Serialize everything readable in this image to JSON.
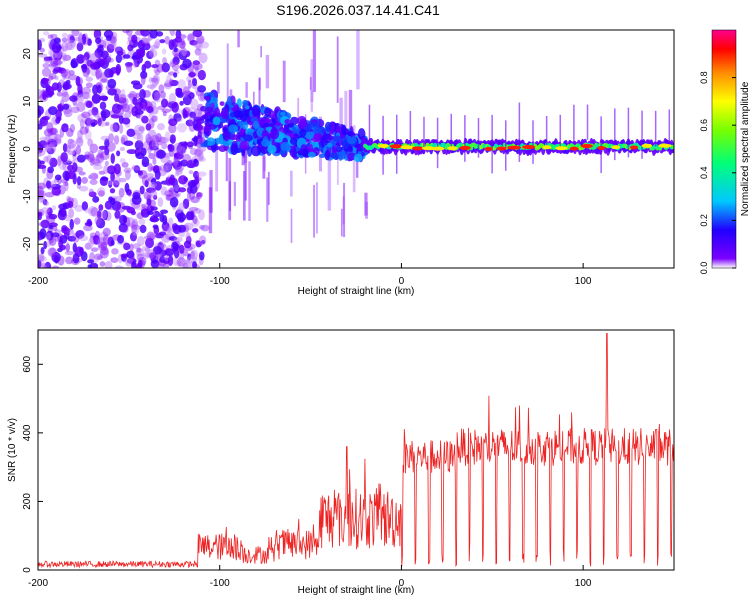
{
  "title": "S196.2026.037.14.41.C41",
  "chart_data": [
    {
      "type": "heatmap",
      "title": "S196.2026.037.14.41.C41",
      "xlabel": "Height of straight line (km)",
      "ylabel": "Frequency (Hz)",
      "xlim": [
        -200,
        150
      ],
      "ylim": [
        -25,
        25
      ],
      "xticks": [
        -200,
        -100,
        0,
        100
      ],
      "yticks": [
        -20,
        -10,
        0,
        10,
        20
      ],
      "colorbar": {
        "label": "Normalized spectral amplitude",
        "range": [
          0,
          1
        ],
        "ticks": [
          0.0,
          0.2,
          0.4,
          0.6,
          0.8
        ],
        "tick_labels": [
          "0.0",
          "0.2",
          "0.4",
          "0.6",
          "0.8"
        ],
        "colors": [
          "#ffffff",
          "#7a00ff",
          "#0000ff",
          "#00c8ff",
          "#00ff78",
          "#78ff00",
          "#ffff00",
          "#ff8c00",
          "#ff0000",
          "#ff00a0"
        ]
      },
      "features": [
        {
          "region_x": [
            -200,
            -108
          ],
          "description": "scattered noise",
          "freq_range": [
            -25,
            25
          ],
          "amplitude": 0.1
        },
        {
          "region_x": [
            -108,
            -20
          ],
          "description": "narrowing band",
          "center_freq": [
            6,
            0
          ],
          "amplitude": 0.25
        },
        {
          "region_x": [
            -20,
            150
          ],
          "description": "steady band",
          "center_freq": 0.5,
          "amplitude": 0.85
        }
      ]
    },
    {
      "type": "line",
      "xlabel": "Height of straight line (km)",
      "ylabel": "SNR (10 * v/v)",
      "xlim": [
        -200,
        150
      ],
      "ylim": [
        0,
        700
      ],
      "xticks": [
        -200,
        -100,
        0,
        100
      ],
      "yticks": [
        0,
        200,
        400,
        600
      ],
      "series": [
        {
          "name": "SNR",
          "color": "#ee2222",
          "segments": [
            {
              "x": [
                -200,
                -112
              ],
              "level": 20
            },
            {
              "x": [
                -112,
                -90
              ],
              "level": 90
            },
            {
              "x": [
                -90,
                -70
              ],
              "level": 60
            },
            {
              "x": [
                -70,
                -45
              ],
              "level": 100
            },
            {
              "x": [
                -45,
                -20
              ],
              "level": 200
            },
            {
              "x": [
                -20,
                0
              ],
              "level": 200
            },
            {
              "x": [
                0,
                30
              ],
              "level": 340
            },
            {
              "x": [
                30,
                150
              ],
              "level": 370
            }
          ],
          "peaks": [
            {
              "x": -30,
              "y": 360
            },
            {
              "x": 113,
              "y": 690
            }
          ]
        }
      ]
    }
  ]
}
